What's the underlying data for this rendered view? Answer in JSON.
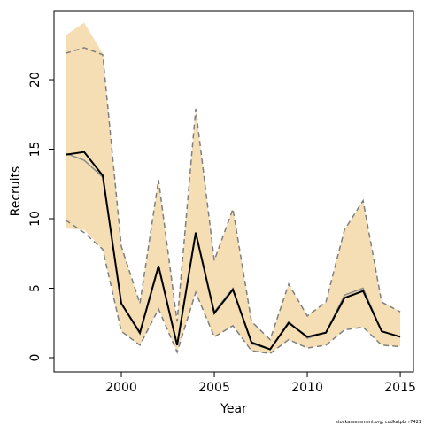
{
  "chart_data": {
    "type": "line",
    "x": [
      1997,
      1998,
      1999,
      2000,
      2001,
      2002,
      2003,
      2004,
      2005,
      2006,
      2007,
      2008,
      2009,
      2010,
      2011,
      2012,
      2013,
      2014,
      2015
    ],
    "band": {
      "color": "#f5deb3",
      "upper": [
        23.2,
        24.1,
        21.9,
        8.0,
        3.9,
        12.8,
        2.6,
        17.9,
        7.0,
        10.7,
        2.6,
        1.3,
        5.3,
        3.0,
        4.0,
        9.2,
        11.3,
        4.0,
        3.3
      ],
      "lower": [
        9.3,
        9.2,
        7.8,
        1.9,
        0.9,
        3.5,
        0.4,
        4.7,
        1.5,
        2.3,
        0.5,
        0.3,
        1.3,
        0.7,
        0.9,
        2.0,
        2.2,
        0.9,
        0.8
      ]
    },
    "series": [
      {
        "color": "#7f7f7f",
        "dashed": true,
        "values": [
          21.9,
          22.3,
          21.8,
          8.0,
          3.9,
          12.8,
          2.6,
          17.9,
          7.0,
          10.7,
          2.6,
          1.3,
          5.3,
          3.0,
          4.0,
          9.2,
          11.3,
          4.0,
          3.3
        ]
      },
      {
        "color": "#7f7f7f",
        "dashed": true,
        "values": [
          9.9,
          9.0,
          7.8,
          1.9,
          0.9,
          3.5,
          0.4,
          4.7,
          1.5,
          2.3,
          0.5,
          0.3,
          1.3,
          0.7,
          0.9,
          2.0,
          2.2,
          0.9,
          0.8
        ]
      },
      {
        "color": "#8c8c8c",
        "dashed": false,
        "values": [
          14.7,
          14.2,
          13.0,
          3.9,
          1.7,
          6.5,
          0.9,
          8.9,
          3.3,
          5.0,
          1.0,
          0.6,
          2.6,
          1.4,
          1.8,
          4.5,
          5.0,
          1.9,
          1.5
        ]
      },
      {
        "color": "#000000",
        "dashed": false,
        "values": [
          14.6,
          14.8,
          13.1,
          3.9,
          1.8,
          6.6,
          0.9,
          9.0,
          3.2,
          4.9,
          1.1,
          0.6,
          2.5,
          1.5,
          1.8,
          4.3,
          4.8,
          1.9,
          1.5
        ]
      }
    ],
    "xlabel": "Year",
    "ylabel": "Recruits",
    "xlim": [
      1996.38,
      2015.71
    ],
    "ylim": [
      -1.02,
      24.97
    ],
    "xticks": [
      2000,
      2005,
      2010,
      2015
    ],
    "yticks": [
      0,
      5,
      10,
      15,
      20
    ],
    "footer": "stockassessment.org, codkatpb, r7421"
  }
}
